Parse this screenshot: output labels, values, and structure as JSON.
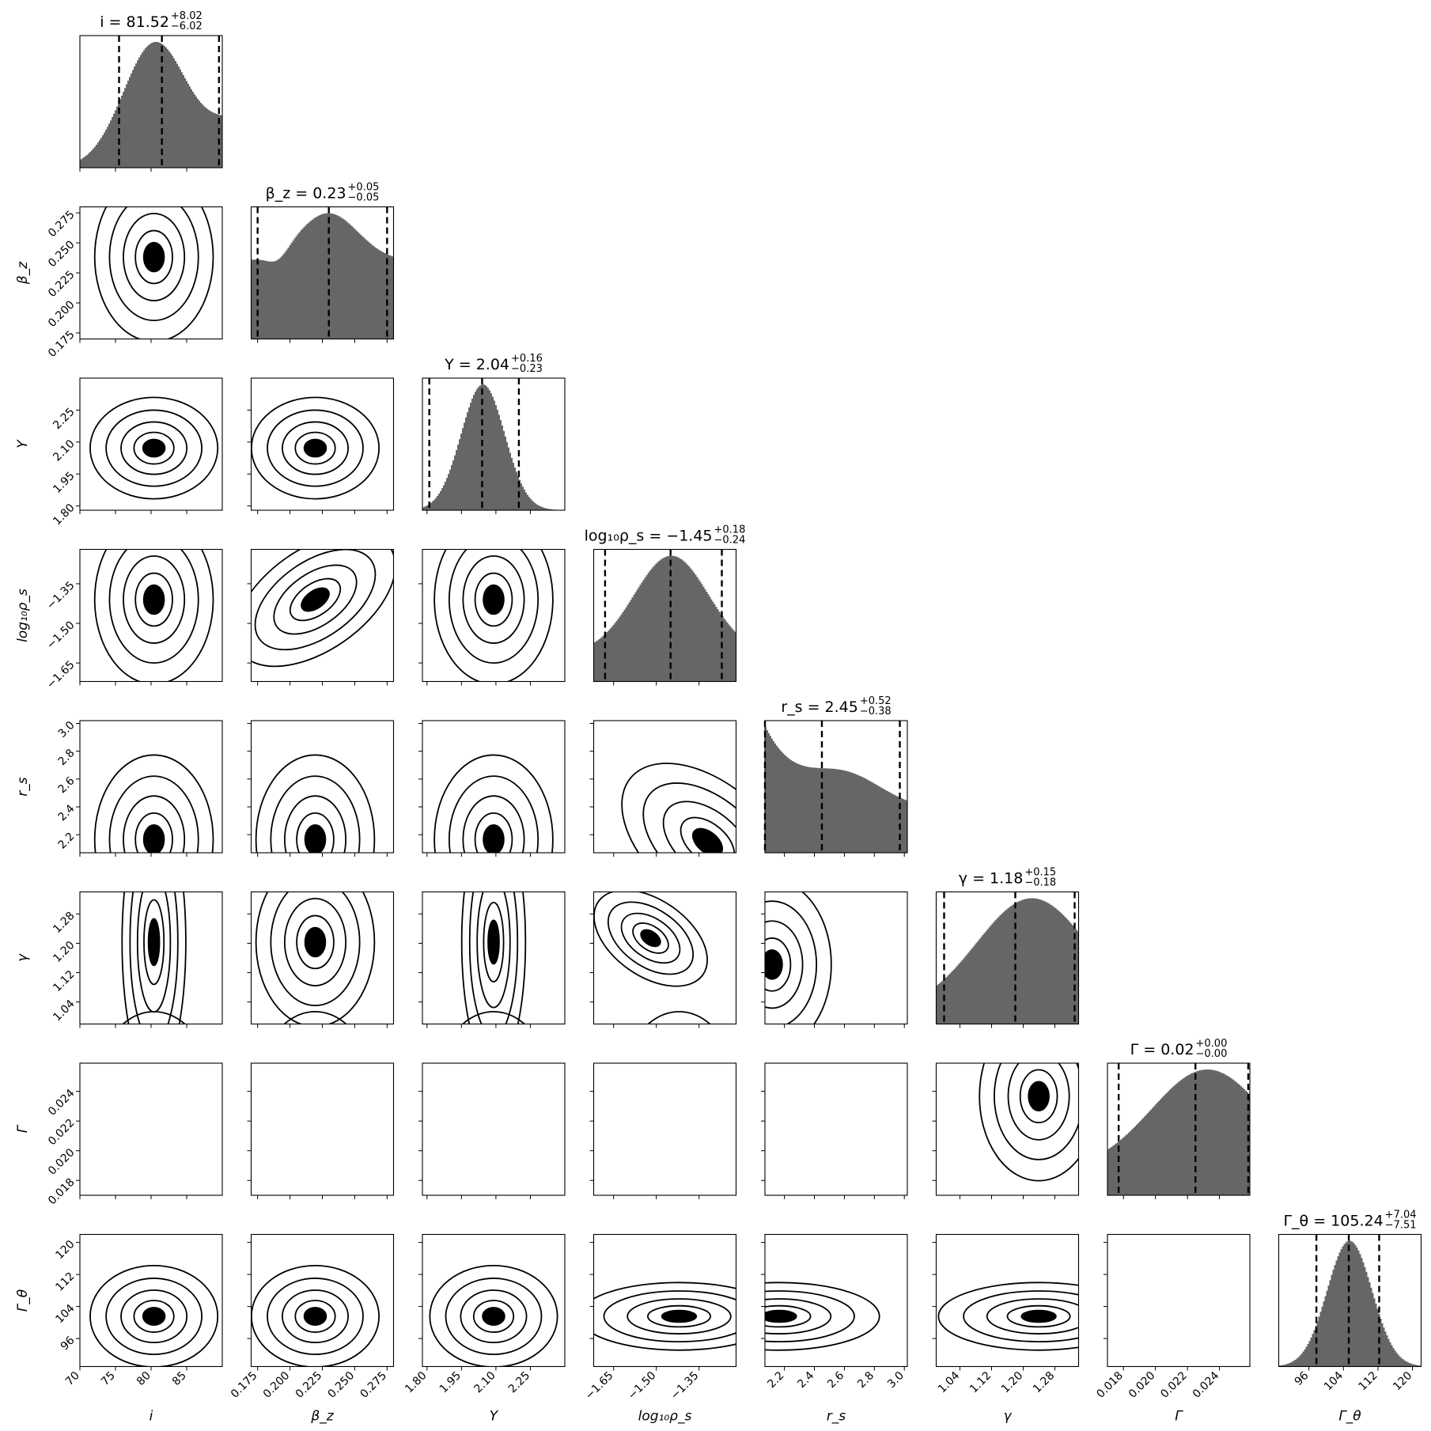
{
  "chart_data": {
    "type": "corner",
    "grid": false,
    "colors": {
      "hist_fill": "#666666",
      "contour": "#000000",
      "axes": "#000000",
      "quantile_line": "#000000"
    },
    "parameters": [
      {
        "key": "i",
        "xlabel": "i",
        "ylabel": "",
        "title": "i = 81.52",
        "title_sup": "+8.02",
        "title_sub": "−6.02",
        "range": [
          70,
          90
        ],
        "ticks": [
          70,
          75,
          80,
          85
        ],
        "tick_labels": [
          "70",
          "75",
          "80",
          "85"
        ],
        "median": 81.52,
        "quantiles": [
          75.5,
          81.52,
          89.54
        ]
      },
      {
        "key": "beta_z",
        "xlabel": "β_z",
        "ylabel": "β_z",
        "title": "β_z = 0.23",
        "title_sup": "+0.05",
        "title_sub": "−0.05",
        "range": [
          0.17,
          0.28
        ],
        "ticks": [
          0.175,
          0.2,
          0.225,
          0.25,
          0.275
        ],
        "tick_labels": [
          "0.175",
          "0.200",
          "0.225",
          "0.250",
          "0.275"
        ],
        "median": 0.23,
        "quantiles": [
          0.175,
          0.23,
          0.275
        ]
      },
      {
        "key": "Y",
        "xlabel": "Y",
        "ylabel": "Y",
        "title": "Y = 2.04",
        "title_sup": "+0.16",
        "title_sub": "−0.23",
        "range": [
          1.78,
          2.4
        ],
        "ticks": [
          1.8,
          1.95,
          2.1,
          2.25
        ],
        "tick_labels": [
          "1.80",
          "1.95",
          "2.10",
          "2.25"
        ],
        "median": 2.04,
        "quantiles": [
          1.81,
          2.04,
          2.2
        ]
      },
      {
        "key": "log10rho_s",
        "xlabel": "log₁₀ρ_s",
        "ylabel": "log₁₀ρ_s",
        "title": "log₁₀ρ_s = −1.45",
        "title_sup": "+0.18",
        "title_sub": "−0.24",
        "range": [
          -1.72,
          -1.22
        ],
        "ticks": [
          -1.65,
          -1.5,
          -1.35
        ],
        "tick_labels": [
          "−1.65",
          "−1.50",
          "−1.35"
        ],
        "median": -1.45,
        "quantiles": [
          -1.68,
          -1.45,
          -1.27
        ]
      },
      {
        "key": "r_s",
        "xlabel": "r_s",
        "ylabel": "r_s",
        "title": "r_s = 2.45",
        "title_sup": "+0.52",
        "title_sub": "−0.38",
        "range": [
          2.07,
          3.02
        ],
        "ticks": [
          2.2,
          2.4,
          2.6,
          2.8,
          3.0
        ],
        "tick_labels": [
          "2.2",
          "2.4",
          "2.6",
          "2.8",
          "3.0"
        ],
        "median": 2.45,
        "quantiles": [
          2.07,
          2.45,
          2.97
        ]
      },
      {
        "key": "gamma",
        "xlabel": "γ",
        "ylabel": "γ",
        "title": "γ = 1.18",
        "title_sup": "+0.15",
        "title_sub": "−0.18",
        "range": [
          0.98,
          1.34
        ],
        "ticks": [
          1.04,
          1.12,
          1.2,
          1.28
        ],
        "tick_labels": [
          "1.04",
          "1.12",
          "1.20",
          "1.28"
        ],
        "median": 1.18,
        "quantiles": [
          1.0,
          1.18,
          1.33
        ]
      },
      {
        "key": "Gamma",
        "xlabel": "Γ",
        "ylabel": "Γ",
        "title": "Γ = 0.02",
        "title_sup": "+0.00",
        "title_sub": "−0.00",
        "range": [
          0.017,
          0.0259
        ],
        "ticks": [
          0.018,
          0.02,
          0.022,
          0.024
        ],
        "tick_labels": [
          "0.018",
          "0.020",
          "0.022",
          "0.024"
        ],
        "median": 0.0225,
        "quantiles": [
          0.0177,
          0.0225,
          0.0258
        ]
      },
      {
        "key": "Gamma_theta",
        "xlabel": "Γ_θ",
        "ylabel": "Γ_θ",
        "title": "Γ_θ = 105.24",
        "title_sup": "+7.04",
        "title_sub": "−7.51",
        "range": [
          89,
          122
        ],
        "ticks": [
          96,
          104,
          112,
          120
        ],
        "tick_labels": [
          "96",
          "104",
          "112",
          "120"
        ],
        "median": 105.24,
        "quantiles": [
          97.73,
          105.24,
          112.28
        ]
      }
    ]
  }
}
